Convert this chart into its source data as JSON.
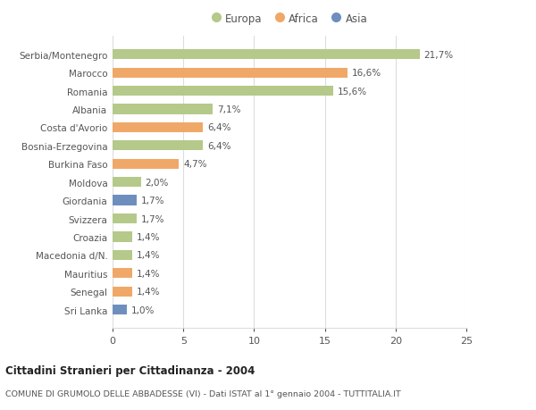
{
  "categories": [
    "Sri Lanka",
    "Senegal",
    "Mauritius",
    "Macedonia d/N.",
    "Croazia",
    "Svizzera",
    "Giordania",
    "Moldova",
    "Burkina Faso",
    "Bosnia-Erzegovina",
    "Costa d'Avorio",
    "Albania",
    "Romania",
    "Marocco",
    "Serbia/Montenegro"
  ],
  "values": [
    1.0,
    1.4,
    1.4,
    1.4,
    1.4,
    1.7,
    1.7,
    2.0,
    4.7,
    6.4,
    6.4,
    7.1,
    15.6,
    16.6,
    21.7
  ],
  "labels": [
    "1,0%",
    "1,4%",
    "1,4%",
    "1,4%",
    "1,4%",
    "1,7%",
    "1,7%",
    "2,0%",
    "4,7%",
    "6,4%",
    "6,4%",
    "7,1%",
    "15,6%",
    "16,6%",
    "21,7%"
  ],
  "colors": [
    "#6e8fbe",
    "#f0a868",
    "#f0a868",
    "#b5c98a",
    "#b5c98a",
    "#b5c98a",
    "#6e8fbe",
    "#b5c98a",
    "#f0a868",
    "#b5c98a",
    "#f0a868",
    "#b5c98a",
    "#b5c98a",
    "#f0a868",
    "#b5c98a"
  ],
  "legend": {
    "Europa": "#b5c98a",
    "Africa": "#f0a868",
    "Asia": "#6e8fbe"
  },
  "title": "Cittadini Stranieri per Cittadinanza - 2004",
  "subtitle": "COMUNE DI GRUMOLO DELLE ABBADESSE (VI) - Dati ISTAT al 1° gennaio 2004 - TUTTITALIA.IT",
  "xlim": [
    0,
    25
  ],
  "xticks": [
    0,
    5,
    10,
    15,
    20,
    25
  ],
  "bg_color": "#ffffff",
  "grid_color": "#dddddd",
  "bar_height": 0.55
}
